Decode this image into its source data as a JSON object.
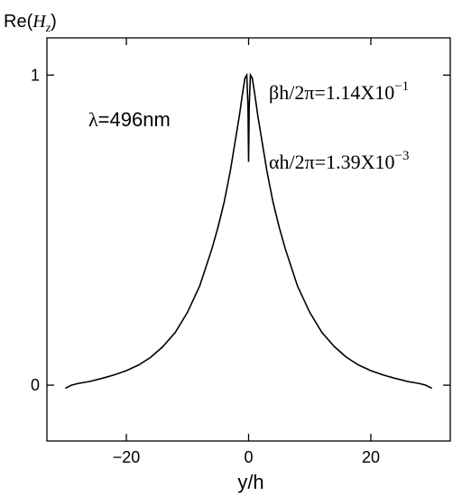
{
  "chart_data": {
    "type": "line",
    "title": "",
    "xlabel": "y/h",
    "ylabel": {
      "prefix": "Re(",
      "var": "H",
      "sub": "z",
      "suffix": ")"
    },
    "xlim": [
      -33,
      33
    ],
    "ylim": [
      -0.18,
      1.12
    ],
    "xticks": [
      -20,
      0,
      20
    ],
    "yticks": [
      0,
      1
    ],
    "xtick_labels": [
      "−20",
      "0",
      "20"
    ],
    "ytick_labels": [
      "0",
      "1"
    ],
    "grid": false,
    "annotations": {
      "lambda": {
        "symbol": "λ",
        "text": "=496nm"
      },
      "beta": {
        "symbol": "β",
        "text": "h/2π=1.14X10",
        "exp": "−1"
      },
      "alpha": {
        "symbol": "α",
        "text": "h/2π=1.39X10",
        "exp": "−3"
      }
    },
    "series": [
      {
        "color": "#000000",
        "x": [
          -30,
          -29,
          -28,
          -26,
          -24,
          -22,
          -20,
          -18,
          -16,
          -14,
          -12,
          -10,
          -8,
          -6,
          -5,
          -4,
          -3,
          -2.5,
          -2,
          -1.5,
          -1,
          -0.6,
          -0.3,
          -0.1,
          0,
          0.1,
          0.3,
          0.6,
          1,
          1.5,
          2,
          2.5,
          3,
          4,
          5,
          6,
          8,
          10,
          12,
          14,
          16,
          18,
          20,
          22,
          24,
          26,
          28,
          29,
          30
        ],
        "y": [
          -0.01,
          0.0,
          0.005,
          0.012,
          0.022,
          0.033,
          0.047,
          0.065,
          0.09,
          0.125,
          0.17,
          0.235,
          0.32,
          0.44,
          0.51,
          0.59,
          0.69,
          0.75,
          0.81,
          0.87,
          0.94,
          0.99,
          1.0,
          0.9,
          0.72,
          0.9,
          1.0,
          0.99,
          0.94,
          0.87,
          0.81,
          0.75,
          0.69,
          0.59,
          0.51,
          0.44,
          0.32,
          0.235,
          0.17,
          0.125,
          0.09,
          0.065,
          0.047,
          0.033,
          0.022,
          0.012,
          0.005,
          0.0,
          -0.01
        ]
      }
    ]
  }
}
